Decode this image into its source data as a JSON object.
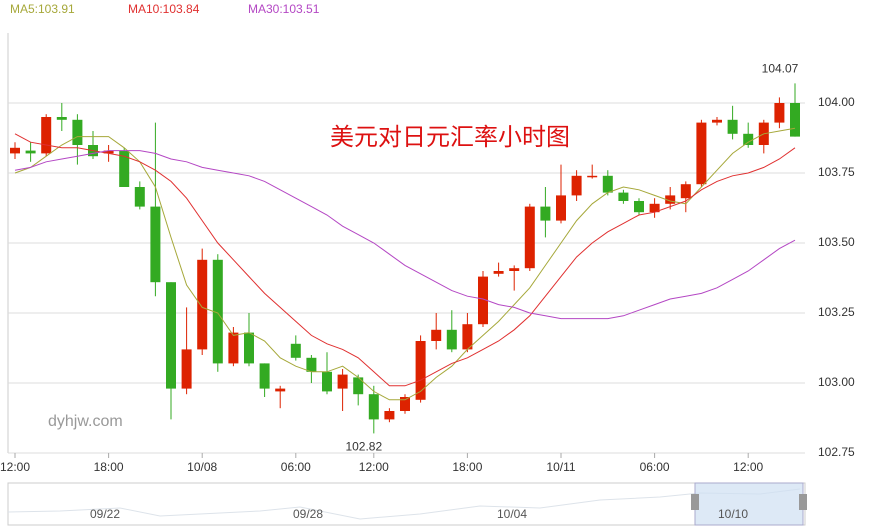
{
  "chart_data": {
    "type": "candlestick",
    "title": "美元对日元汇率小时图",
    "watermark": "dyhjw.com",
    "categories": [
      "12:00",
      null,
      null,
      null,
      null,
      null,
      "18:00",
      null,
      null,
      null,
      null,
      null,
      "10/08",
      null,
      null,
      null,
      null,
      null,
      "06:00",
      null,
      null,
      null,
      null,
      "12:00",
      null,
      null,
      null,
      null,
      null,
      "18:00",
      null,
      null,
      null,
      null,
      null,
      "10/11",
      null,
      null,
      null,
      null,
      null,
      "06:00",
      null,
      null,
      null,
      null,
      null,
      "12:00",
      null,
      null,
      null
    ],
    "open": [
      103.82,
      103.83,
      103.82,
      103.95,
      103.94,
      103.85,
      103.82,
      103.83,
      103.7,
      103.63,
      103.36,
      102.98,
      103.12,
      103.44,
      103.07,
      103.18,
      103.07,
      102.97,
      103.14,
      103.09,
      103.04,
      102.98,
      103.02,
      102.96,
      102.87,
      102.9,
      102.94,
      103.15,
      103.19,
      103.12,
      103.21,
      103.39,
      103.4,
      103.41,
      103.63,
      103.58,
      103.67,
      103.74,
      103.74,
      103.68,
      103.65,
      103.61,
      103.64,
      103.66,
      103.71,
      103.93,
      103.94,
      103.89,
      103.85,
      103.93,
      104.0
    ],
    "high": [
      103.86,
      103.86,
      103.96,
      104.0,
      103.96,
      103.9,
      103.85,
      103.84,
      103.72,
      103.93,
      103.36,
      103.27,
      103.48,
      103.46,
      103.2,
      103.25,
      103.07,
      102.99,
      103.17,
      103.1,
      103.11,
      103.05,
      103.03,
      102.99,
      102.91,
      102.96,
      103.17,
      103.25,
      103.26,
      103.25,
      103.4,
      103.43,
      103.42,
      103.64,
      103.7,
      103.78,
      103.76,
      103.78,
      103.76,
      103.69,
      103.66,
      103.66,
      103.7,
      103.72,
      103.94,
      103.95,
      103.99,
      103.93,
      103.94,
      104.02,
      104.07
    ],
    "low": [
      103.8,
      103.79,
      103.81,
      103.9,
      103.78,
      103.8,
      103.79,
      103.7,
      103.62,
      103.31,
      102.87,
      102.96,
      103.1,
      103.04,
      103.06,
      103.06,
      102.95,
      102.91,
      103.08,
      103.0,
      102.96,
      102.9,
      102.92,
      102.82,
      102.86,
      102.89,
      102.93,
      103.12,
      103.11,
      103.11,
      103.2,
      103.38,
      103.33,
      103.4,
      103.52,
      103.57,
      103.65,
      103.73,
      103.67,
      103.64,
      103.6,
      103.59,
      103.62,
      103.61,
      103.7,
      103.92,
      103.87,
      103.84,
      103.82,
      103.91,
      103.88
    ],
    "close": [
      103.84,
      103.82,
      103.95,
      103.94,
      103.85,
      103.81,
      103.83,
      103.7,
      103.63,
      103.36,
      102.98,
      103.12,
      103.44,
      103.07,
      103.18,
      103.07,
      102.98,
      102.98,
      103.09,
      103.04,
      102.97,
      103.03,
      102.96,
      102.87,
      102.9,
      102.95,
      103.15,
      103.19,
      103.12,
      103.21,
      103.38,
      103.4,
      103.41,
      103.63,
      103.58,
      103.67,
      103.74,
      103.74,
      103.68,
      103.65,
      103.61,
      103.64,
      103.67,
      103.71,
      103.93,
      103.94,
      103.89,
      103.85,
      103.93,
      104.0,
      103.88
    ],
    "up_color": "#dd2200",
    "down_color": "#33aa22",
    "series": [
      {
        "name": "MA5:103.91",
        "color": "#a6a83a",
        "values": [
          103.75,
          103.77,
          103.81,
          103.85,
          103.88,
          103.88,
          103.88,
          103.84,
          103.79,
          103.7,
          103.52,
          103.35,
          103.27,
          103.25,
          103.17,
          103.18,
          103.15,
          103.09,
          103.06,
          103.04,
          103.04,
          103.06,
          103.02,
          102.97,
          102.94,
          102.94,
          102.97,
          103.02,
          103.06,
          103.12,
          103.17,
          103.22,
          103.28,
          103.34,
          103.42,
          103.5,
          103.58,
          103.64,
          103.68,
          103.7,
          103.69,
          103.67,
          103.65,
          103.64,
          103.7,
          103.76,
          103.82,
          103.86,
          103.89,
          103.9,
          103.91
        ]
      },
      {
        "name": "MA10:103.84",
        "color": "#e03030",
        "values": [
          103.89,
          103.86,
          103.85,
          103.84,
          103.84,
          103.83,
          103.82,
          103.81,
          103.79,
          103.76,
          103.72,
          103.66,
          103.58,
          103.5,
          103.44,
          103.38,
          103.32,
          103.27,
          103.22,
          103.17,
          103.14,
          103.12,
          103.09,
          103.04,
          102.99,
          102.99,
          103.01,
          103.04,
          103.07,
          103.09,
          103.12,
          103.15,
          103.19,
          103.24,
          103.31,
          103.38,
          103.45,
          103.5,
          103.54,
          103.57,
          103.6,
          103.61,
          103.63,
          103.65,
          103.69,
          103.72,
          103.74,
          103.75,
          103.77,
          103.8,
          103.84
        ]
      },
      {
        "name": "MA30:103.51",
        "color": "#b447c4",
        "values": [
          103.76,
          103.77,
          103.79,
          103.8,
          103.81,
          103.82,
          103.83,
          103.83,
          103.83,
          103.82,
          103.8,
          103.79,
          103.77,
          103.76,
          103.75,
          103.74,
          103.72,
          103.69,
          103.66,
          103.63,
          103.6,
          103.56,
          103.53,
          103.5,
          103.46,
          103.42,
          103.39,
          103.36,
          103.33,
          103.31,
          103.3,
          103.28,
          103.27,
          103.25,
          103.24,
          103.23,
          103.23,
          103.23,
          103.23,
          103.24,
          103.26,
          103.28,
          103.3,
          103.31,
          103.32,
          103.34,
          103.37,
          103.4,
          103.44,
          103.48,
          103.51
        ]
      }
    ],
    "ylim": [
      102.75,
      104.25
    ],
    "yticks": [
      102.75,
      {
        "value": 103,
        "label": "103.00"
      },
      103.25,
      {
        "value": 103.5,
        "label": "103.50"
      },
      103.75,
      {
        "value": 104,
        "label": "104.00"
      }
    ],
    "grid": true,
    "navigator_labels": [
      "09/22",
      "09/28",
      "10/04",
      "10/10"
    ]
  }
}
